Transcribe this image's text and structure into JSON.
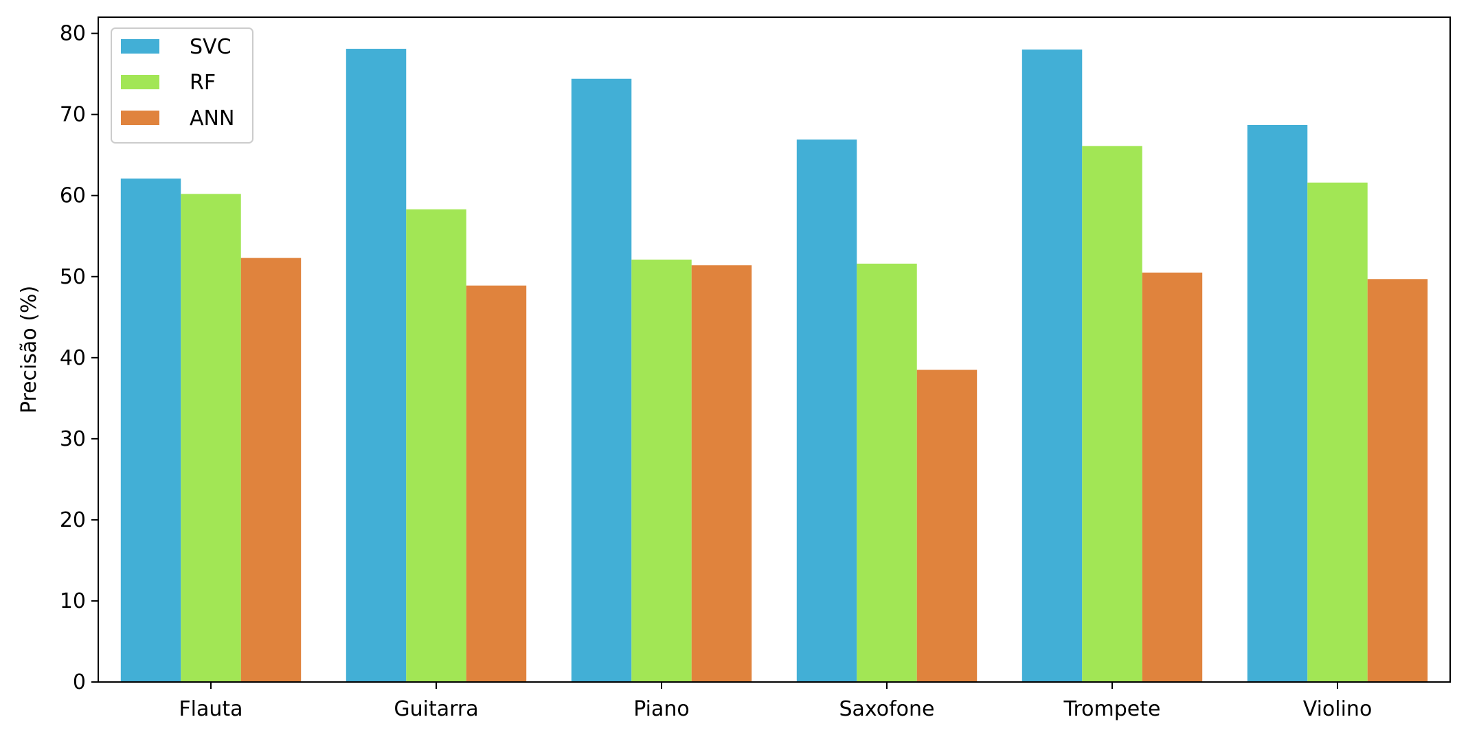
{
  "chart_data": {
    "type": "bar",
    "title": "",
    "xlabel": "",
    "ylabel": "Precisão (%)",
    "ylim": [
      0,
      82
    ],
    "yticks": [
      0,
      10,
      20,
      30,
      40,
      50,
      60,
      70,
      80
    ],
    "grid": false,
    "legend_position": "top-left",
    "categories": [
      "Flauta",
      "Guitarra",
      "Piano",
      "Saxofone",
      "Trompete",
      "Violino"
    ],
    "series": [
      {
        "name": "SVC",
        "color": "#42afd6",
        "values": [
          62.1,
          78.1,
          74.4,
          66.9,
          78.0,
          68.7
        ]
      },
      {
        "name": "RF",
        "color": "#a2e655",
        "values": [
          60.2,
          58.3,
          52.1,
          51.6,
          66.1,
          61.6
        ]
      },
      {
        "name": "ANN",
        "color": "#e0833d",
        "values": [
          52.3,
          48.9,
          51.4,
          38.5,
          50.5,
          49.7
        ]
      }
    ]
  }
}
